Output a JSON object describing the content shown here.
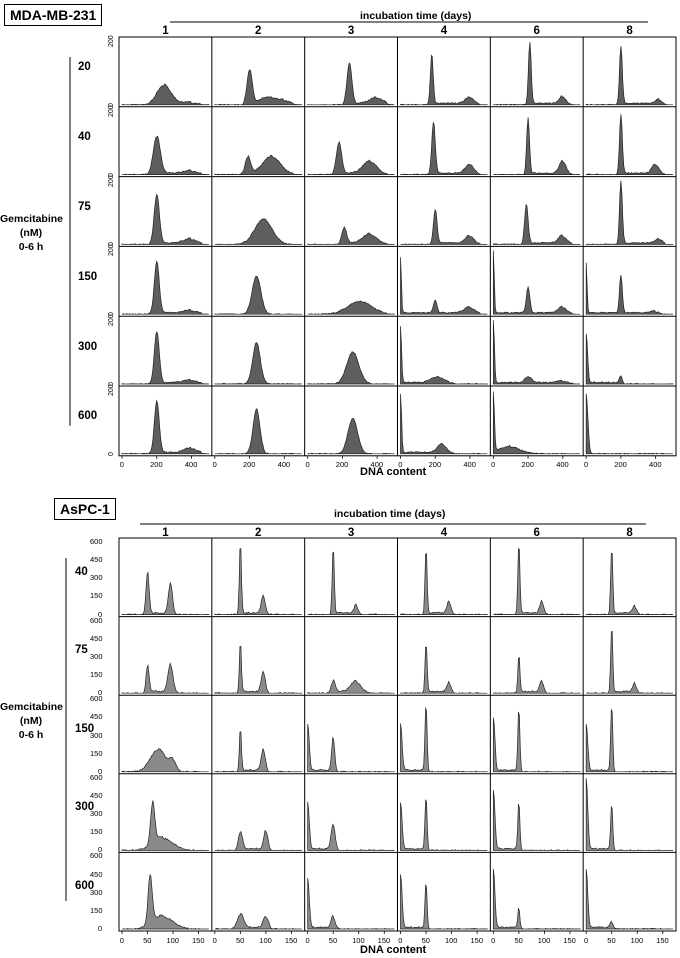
{
  "chart_data": [
    {
      "type": "area",
      "title": "MDA-MB-231",
      "col_header": "incubation time (days)",
      "columns": [
        "1",
        "2",
        "3",
        "4",
        "6",
        "8"
      ],
      "row_axis_label": [
        "Gemcitabine",
        "(nM)",
        "0-6 h"
      ],
      "rows": [
        "20",
        "40",
        "75",
        "150",
        "300",
        "600"
      ],
      "xlabel": "DNA content",
      "x_ticks": [
        "0",
        "200",
        "400"
      ],
      "xlim": [
        0,
        500
      ],
      "y_ticks": [
        "0",
        "200"
      ],
      "ylim": [
        0,
        200
      ],
      "color": "#5e5e5e",
      "series_note": "",
      "peaks": [
        [
          [
            [
              240,
              60,
              40
            ],
            [
              400,
              6,
              50
            ]
          ],
          [
            [
              200,
              110,
              15
            ],
            [
              300,
              20,
              40
            ],
            [
              400,
              12,
              40
            ]
          ],
          [
            [
              240,
              130,
              14
            ],
            [
              400,
              20,
              40
            ]
          ],
          [
            [
              180,
              160,
              8
            ],
            [
              400,
              22,
              25
            ]
          ],
          [
            [
              210,
              195,
              8
            ],
            [
              400,
              24,
              20
            ]
          ],
          [
            [
              200,
              185,
              8
            ],
            [
              420,
              14,
              20
            ]
          ]
        ],
        [
          [
            [
              200,
              120,
              20
            ],
            [
              400,
              10,
              40
            ]
          ],
          [
            [
              190,
              55,
              15
            ],
            [
              330,
              55,
              50
            ]
          ],
          [
            [
              180,
              100,
              15
            ],
            [
              360,
              40,
              40
            ]
          ],
          [
            [
              190,
              165,
              10
            ],
            [
              400,
              30,
              25
            ]
          ],
          [
            [
              200,
              180,
              8
            ],
            [
              400,
              40,
              20
            ]
          ],
          [
            [
              200,
              190,
              8
            ],
            [
              400,
              30,
              20
            ]
          ]
        ],
        [
          [
            [
              200,
              155,
              15
            ],
            [
              400,
              15,
              40
            ]
          ],
          [
            [
              280,
              80,
              50
            ]
          ],
          [
            [
              210,
              50,
              14
            ],
            [
              360,
              30,
              40
            ]
          ],
          [
            [
              200,
              110,
              10
            ],
            [
              400,
              25,
              25
            ]
          ],
          [
            [
              190,
              125,
              10
            ],
            [
              400,
              25,
              25
            ]
          ],
          [
            [
              200,
              200,
              8
            ],
            [
              420,
              15,
              20
            ]
          ]
        ],
        [
          [
            [
              200,
              165,
              14
            ],
            [
              400,
              10,
              40
            ]
          ],
          [
            [
              240,
              120,
              25
            ]
          ],
          [
            [
              300,
              40,
              70
            ]
          ],
          [
            [
              0,
              180,
              5
            ],
            [
              200,
              40,
              10
            ],
            [
              400,
              20,
              30
            ]
          ],
          [
            [
              0,
              200,
              5
            ],
            [
              200,
              80,
              10
            ],
            [
              400,
              20,
              25
            ]
          ],
          [
            [
              0,
              160,
              5
            ],
            [
              200,
              120,
              8
            ],
            [
              400,
              8,
              20
            ]
          ]
        ],
        [
          [
            [
              200,
              165,
              14
            ],
            [
              400,
              10,
              40
            ]
          ],
          [
            [
              240,
              130,
              22
            ]
          ],
          [
            [
              260,
              100,
              35
            ]
          ],
          [
            [
              0,
              180,
              6
            ],
            [
              220,
              20,
              40
            ]
          ],
          [
            [
              0,
              200,
              6
            ],
            [
              200,
              18,
              20
            ],
            [
              400,
              8,
              30
            ]
          ],
          [
            [
              0,
              160,
              8
            ],
            [
              200,
              25,
              8
            ]
          ]
        ],
        [
          [
            [
              200,
              165,
              14
            ],
            [
              400,
              15,
              40
            ]
          ],
          [
            [
              240,
              140,
              20
            ]
          ],
          [
            [
              260,
              110,
              28
            ]
          ],
          [
            [
              0,
              190,
              6
            ],
            [
              240,
              30,
              25
            ]
          ],
          [
            [
              0,
              190,
              6
            ],
            [
              100,
              20,
              60
            ]
          ],
          [
            [
              0,
              190,
              10
            ]
          ]
        ]
      ]
    },
    {
      "type": "area",
      "title": "AsPC-1",
      "col_header": "incubation time (days)",
      "columns": [
        "1",
        "2",
        "3",
        "4",
        "6",
        "8"
      ],
      "row_axis_label": [
        "Gemcitabine",
        "(nM)",
        "0-6 h"
      ],
      "rows": [
        "40",
        "75",
        "150",
        "300",
        "600"
      ],
      "xlabel": "DNA content",
      "x_ticks": [
        "0",
        "50",
        "100",
        "150"
      ],
      "xlim": [
        0,
        170
      ],
      "y_ticks": [
        "0",
        "150",
        "300",
        "450",
        "600"
      ],
      "ylim": [
        0,
        600
      ],
      "color": "#8a8a8a",
      "peaks": [
        [
          [
            [
              50,
              350,
              3
            ],
            [
              95,
              250,
              4
            ]
          ],
          [
            [
              50,
              600,
              2
            ],
            [
              95,
              150,
              4
            ]
          ],
          [
            [
              50,
              560,
              2
            ],
            [
              95,
              70,
              4
            ]
          ],
          [
            [
              50,
              560,
              2
            ],
            [
              95,
              100,
              4
            ]
          ],
          [
            [
              50,
              600,
              2
            ],
            [
              95,
              100,
              4
            ]
          ],
          [
            [
              50,
              560,
              2
            ],
            [
              95,
              60,
              4
            ]
          ]
        ],
        [
          [
            [
              50,
              230,
              3
            ],
            [
              95,
              230,
              5
            ]
          ],
          [
            [
              50,
              420,
              2
            ],
            [
              95,
              170,
              4
            ]
          ],
          [
            [
              50,
              100,
              4
            ],
            [
              95,
              90,
              10
            ]
          ],
          [
            [
              50,
              420,
              2
            ],
            [
              95,
              80,
              4
            ]
          ],
          [
            [
              50,
              320,
              2
            ],
            [
              95,
              90,
              4
            ]
          ],
          [
            [
              50,
              560,
              2
            ],
            [
              95,
              70,
              4
            ]
          ]
        ],
        [
          [
            [
              70,
              180,
              15
            ],
            [
              100,
              80,
              6
            ]
          ],
          [
            [
              50,
              360,
              2
            ],
            [
              95,
              180,
              4
            ]
          ],
          [
            [
              0,
              400,
              3
            ],
            [
              50,
              280,
              3
            ]
          ],
          [
            [
              0,
              400,
              3
            ],
            [
              50,
              570,
              2
            ]
          ],
          [
            [
              0,
              450,
              3
            ],
            [
              50,
              530,
              2
            ]
          ],
          [
            [
              0,
              400,
              3
            ],
            [
              50,
              560,
              2
            ]
          ]
        ],
        [
          [
            [
              60,
              340,
              4
            ],
            [
              80,
              100,
              20
            ]
          ],
          [
            [
              50,
              150,
              4
            ],
            [
              100,
              160,
              4
            ]
          ],
          [
            [
              0,
              400,
              3
            ],
            [
              50,
              210,
              4
            ]
          ],
          [
            [
              0,
              400,
              3
            ],
            [
              50,
              450,
              2
            ]
          ],
          [
            [
              0,
              500,
              3
            ],
            [
              50,
              400,
              2
            ]
          ],
          [
            [
              0,
              600,
              3
            ],
            [
              50,
              390,
              2
            ]
          ]
        ],
        [
          [
            [
              55,
              400,
              4
            ],
            [
              80,
              100,
              20
            ]
          ],
          [
            [
              50,
              120,
              6
            ],
            [
              100,
              100,
              5
            ]
          ],
          [
            [
              0,
              420,
              3
            ],
            [
              50,
              100,
              4
            ]
          ],
          [
            [
              0,
              450,
              3
            ],
            [
              50,
              390,
              2
            ]
          ],
          [
            [
              0,
              500,
              3
            ],
            [
              50,
              170,
              2
            ]
          ],
          [
            [
              0,
              500,
              3
            ],
            [
              50,
              50,
              3
            ]
          ]
        ]
      ]
    }
  ]
}
